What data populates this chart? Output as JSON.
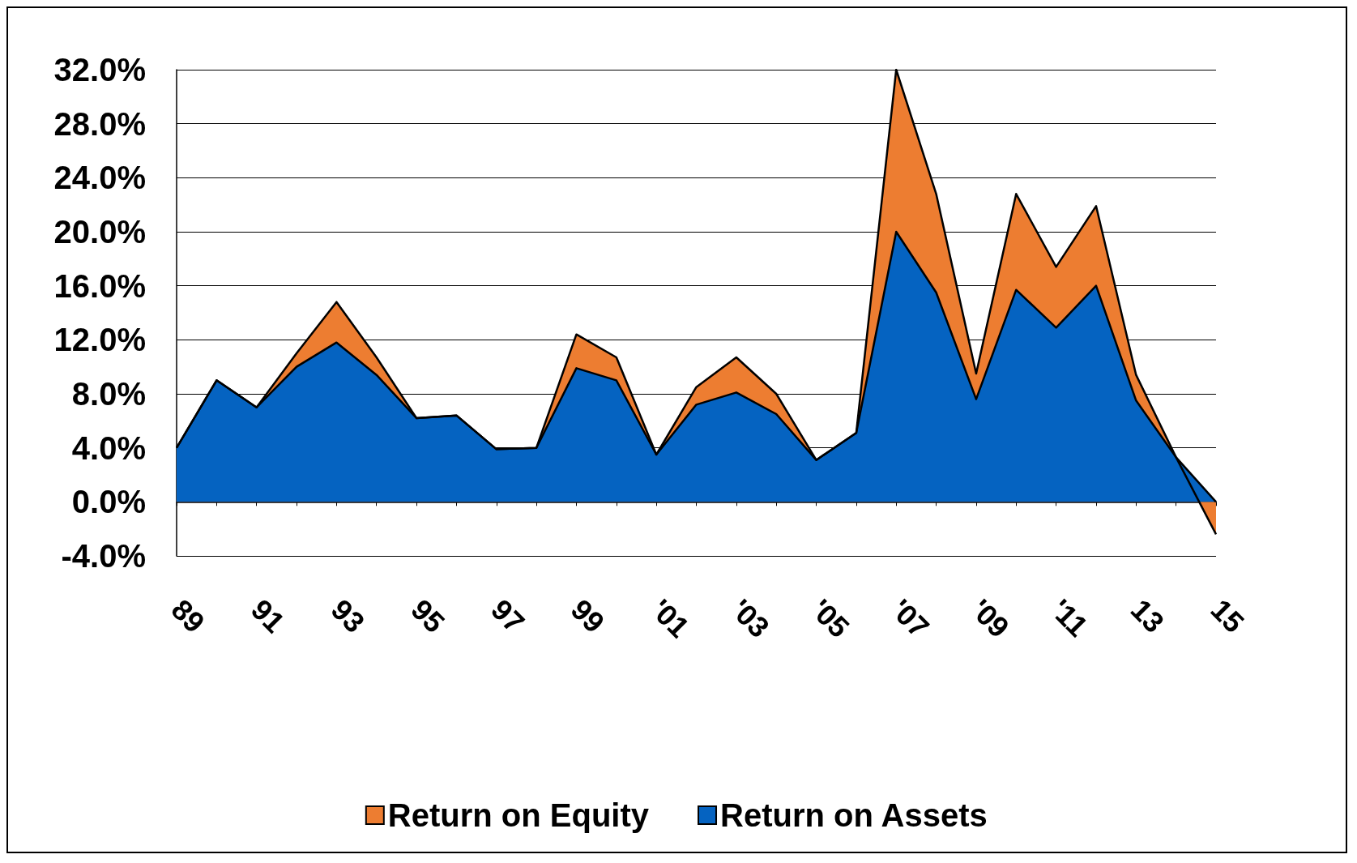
{
  "chart_data": {
    "type": "area",
    "categories": [
      "89",
      null,
      "91",
      null,
      "93",
      null,
      "95",
      null,
      "97",
      null,
      "99",
      null,
      "'01",
      null,
      "'03",
      null,
      "'05",
      null,
      "'07",
      null,
      "'09",
      null,
      "'11",
      null,
      "13",
      null,
      "15"
    ],
    "series": [
      {
        "name": "Return on Equity",
        "color": "#ed7d31",
        "values": [
          4.0,
          9.0,
          7.0,
          11.0,
          14.8,
          10.7,
          6.2,
          6.4,
          3.9,
          4.0,
          12.4,
          10.7,
          3.5,
          8.5,
          10.7,
          8.0,
          3.1,
          5.1,
          32.0,
          22.8,
          9.5,
          22.8,
          17.4,
          21.9,
          9.4,
          3.3,
          -2.4
        ]
      },
      {
        "name": "Return on Assets",
        "color": "#0563c1",
        "values": [
          4.0,
          9.0,
          7.0,
          10.0,
          11.8,
          9.4,
          6.2,
          6.4,
          3.9,
          4.0,
          9.9,
          9.0,
          3.5,
          7.2,
          8.1,
          6.5,
          3.1,
          5.1,
          20.0,
          15.5,
          7.6,
          15.7,
          12.9,
          16.0,
          7.5,
          3.3,
          0.0
        ]
      }
    ],
    "ylim": [
      -4,
      32
    ],
    "yticks": [
      {
        "value": -4,
        "label": "-4.0%"
      },
      {
        "value": 0,
        "label": "0.0%"
      },
      {
        "value": 4,
        "label": "4.0%"
      },
      {
        "value": 8,
        "label": "8.0%"
      },
      {
        "value": 12,
        "label": "12.0%"
      },
      {
        "value": 16,
        "label": "16.0%"
      },
      {
        "value": 20,
        "label": "20.0%"
      },
      {
        "value": 24,
        "label": "24.0%"
      },
      {
        "value": 28,
        "label": "28.0%"
      },
      {
        "value": 32,
        "label": "32.0%"
      }
    ],
    "grid": "y",
    "legend": "bottom",
    "marker": "none"
  }
}
